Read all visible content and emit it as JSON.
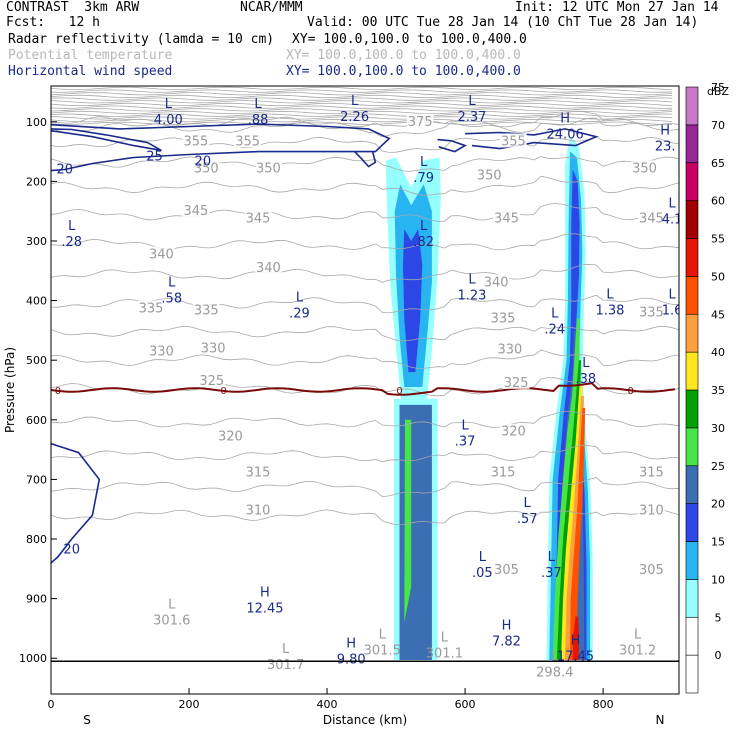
{
  "header": {
    "model": "CONTRAST  3km ARW",
    "center": "NCAR/MMM",
    "init": "Init: 12 UTC Mon 27 Jan 14",
    "fcst": "Fcst:   12 h",
    "valid": "Valid: 00 UTC Tue 28 Jan 14 (10 ChT Tue 28 Jan 14)",
    "fields": [
      {
        "name": "Radar reflectivity (lamda = 10 cm)",
        "xy": "XY= 100.0,100.0 to 100.0,400.0",
        "color": "#000000"
      },
      {
        "name": "Potential temperature",
        "xy": "XY= 100.0,100.0 to 100.0,400.0",
        "color": "#b8b8b8"
      },
      {
        "name": "Horizontal wind speed",
        "xy": "XY= 100.0,100.0 to 100.0,400.0",
        "color": "#1a2a8a"
      }
    ]
  },
  "chart_data": {
    "type": "heatmap",
    "xlabel": "Distance (km)",
    "ylabel": "Pressure (hPa)",
    "xlim": [
      0,
      910
    ],
    "ylim": [
      1060,
      40
    ],
    "x_ticks": [
      0,
      200,
      400,
      600,
      800
    ],
    "y_ticks": [
      100,
      200,
      300,
      400,
      500,
      600,
      700,
      800,
      900,
      1000
    ],
    "x_end_labels": {
      "left": "S",
      "right": "N"
    },
    "colorbar": {
      "title": "dBZ",
      "levels": [
        0,
        5,
        10,
        15,
        20,
        25,
        30,
        35,
        40,
        45,
        50,
        55,
        60,
        65,
        70,
        75
      ],
      "colors": [
        "#ffffff",
        "#96ffff",
        "#28b4f0",
        "#2d46e6",
        "#3c6eb4",
        "#46e646",
        "#00a000",
        "#ffe61e",
        "#ffa03c",
        "#ff5000",
        "#e61400",
        "#a00000",
        "#c80064",
        "#962896",
        "#c878c8"
      ]
    },
    "reflectivity_columns": [
      {
        "x": 505,
        "p_bottom": 1003,
        "p_top": 570,
        "max_dbz": 30
      },
      {
        "x": 525,
        "p_bottom": 565,
        "p_top": 165,
        "max_dbz": 20
      },
      {
        "x": 750,
        "p_bottom": 1003,
        "p_top": 125,
        "max_dbz": 55
      }
    ],
    "freezing_level": {
      "label": "0",
      "p": 550
    },
    "theta_labels": [
      {
        "value": "375",
        "x": 535,
        "p": 100
      },
      {
        "value": "355",
        "x": 210,
        "p": 133
      },
      {
        "value": "355",
        "x": 285,
        "p": 133
      },
      {
        "value": "355",
        "x": 670,
        "p": 133
      },
      {
        "value": "350",
        "x": 225,
        "p": 178
      },
      {
        "value": "350",
        "x": 315,
        "p": 178
      },
      {
        "value": "350",
        "x": 635,
        "p": 190
      },
      {
        "value": "350",
        "x": 860,
        "p": 178
      },
      {
        "value": "345",
        "x": 210,
        "p": 250
      },
      {
        "value": "345",
        "x": 300,
        "p": 262
      },
      {
        "value": "345",
        "x": 660,
        "p": 262
      },
      {
        "value": "345",
        "x": 870,
        "p": 262
      },
      {
        "value": "340",
        "x": 160,
        "p": 323
      },
      {
        "value": "340",
        "x": 315,
        "p": 345
      },
      {
        "value": "340",
        "x": 645,
        "p": 370
      },
      {
        "value": "335",
        "x": 145,
        "p": 413
      },
      {
        "value": "335",
        "x": 225,
        "p": 417
      },
      {
        "value": "335",
        "x": 655,
        "p": 430
      },
      {
        "value": "335",
        "x": 870,
        "p": 420
      },
      {
        "value": "330",
        "x": 160,
        "p": 485
      },
      {
        "value": "330",
        "x": 235,
        "p": 480
      },
      {
        "value": "330",
        "x": 665,
        "p": 482
      },
      {
        "value": "325",
        "x": 233,
        "p": 535
      },
      {
        "value": "325",
        "x": 674,
        "p": 538
      },
      {
        "value": "320",
        "x": 260,
        "p": 628
      },
      {
        "value": "320",
        "x": 670,
        "p": 620
      },
      {
        "value": "315",
        "x": 300,
        "p": 688
      },
      {
        "value": "315",
        "x": 655,
        "p": 688
      },
      {
        "value": "315",
        "x": 870,
        "p": 688
      },
      {
        "value": "310",
        "x": 300,
        "p": 752
      },
      {
        "value": "310",
        "x": 870,
        "p": 752
      },
      {
        "value": "305",
        "x": 660,
        "p": 852
      },
      {
        "value": "305",
        "x": 870,
        "p": 852
      }
    ],
    "theta_extrema": [
      {
        "kind": "L",
        "value": "301.6",
        "x": 175,
        "p": 925
      },
      {
        "kind": "L",
        "value": "301.7",
        "x": 340,
        "p": 1000
      },
      {
        "kind": "L",
        "value": "301.5",
        "x": 480,
        "p": 975
      },
      {
        "kind": "L",
        "value": "301.1",
        "x": 570,
        "p": 980
      },
      {
        "kind": "L",
        "value": "301.2",
        "x": 850,
        "p": 975
      },
      {
        "kind": "L",
        "value": "298.4",
        "x": 730,
        "p": 1012
      }
    ],
    "wind_contour_labels": [
      {
        "value": "20",
        "x": 20,
        "p": 180
      },
      {
        "value": "25",
        "x": 150,
        "p": 158
      },
      {
        "value": "20",
        "x": 220,
        "p": 167
      },
      {
        "value": "20",
        "x": 30,
        "p": 818
      }
    ],
    "wind_extrema": [
      {
        "kind": "L",
        "value": "4.00",
        "x": 170,
        "p": 85
      },
      {
        "kind": "L",
        "value": ".88",
        "x": 300,
        "p": 85
      },
      {
        "kind": "L",
        "value": "2.26",
        "x": 440,
        "p": 80
      },
      {
        "kind": "L",
        "value": "2.37",
        "x": 610,
        "p": 80
      },
      {
        "kind": "H",
        "value": "24.06",
        "x": 745,
        "p": 110
      },
      {
        "kind": "H",
        "value": "23.",
        "x": 890,
        "p": 130
      },
      {
        "kind": "L",
        "value": ".79",
        "x": 540,
        "p": 183
      },
      {
        "kind": "L",
        "value": ".82",
        "x": 540,
        "p": 290
      },
      {
        "kind": "L",
        "value": ".28",
        "x": 30,
        "p": 290
      },
      {
        "kind": "L",
        "value": ".58",
        "x": 175,
        "p": 385
      },
      {
        "kind": "L",
        "value": ".29",
        "x": 360,
        "p": 410
      },
      {
        "kind": "L",
        "value": "1.23",
        "x": 610,
        "p": 380
      },
      {
        "kind": "L",
        "value": "1.38",
        "x": 810,
        "p": 405
      },
      {
        "kind": "L",
        "value": "4.1",
        "x": 900,
        "p": 252
      },
      {
        "kind": "L",
        "value": "1.6",
        "x": 900,
        "p": 405
      },
      {
        "kind": "L",
        "value": ".24",
        "x": 730,
        "p": 437
      },
      {
        "kind": "L",
        "value": ".38",
        "x": 775,
        "p": 520
      },
      {
        "kind": "L",
        "value": ".37",
        "x": 600,
        "p": 625
      },
      {
        "kind": "L",
        "value": ".57",
        "x": 690,
        "p": 755
      },
      {
        "kind": "L",
        "value": ".05",
        "x": 625,
        "p": 845
      },
      {
        "kind": "L",
        "value": ".37",
        "x": 725,
        "p": 845
      },
      {
        "kind": "H",
        "value": "12.45",
        "x": 310,
        "p": 905
      },
      {
        "kind": "H",
        "value": "7.82",
        "x": 660,
        "p": 960
      },
      {
        "kind": "H",
        "value": "9.80",
        "x": 435,
        "p": 990
      },
      {
        "kind": "H",
        "value": "17.45",
        "x": 760,
        "p": 985
      }
    ]
  }
}
